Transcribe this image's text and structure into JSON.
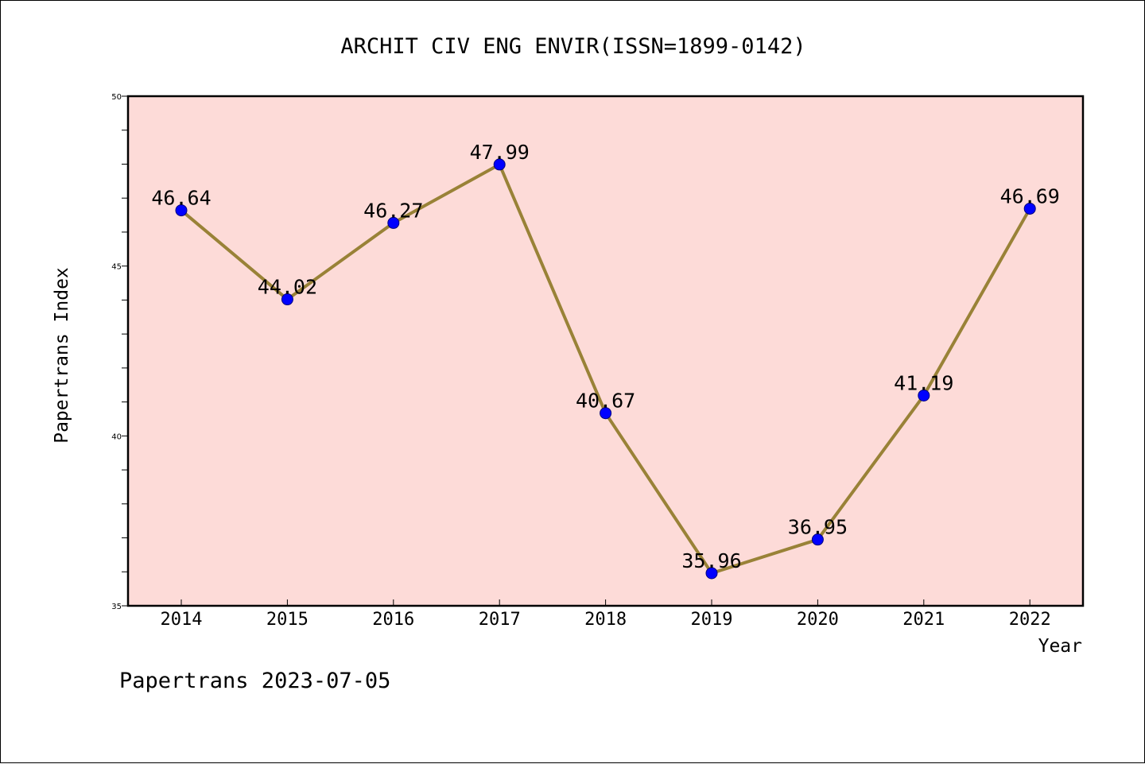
{
  "chart_data": {
    "type": "line",
    "title": "ARCHIT CIV ENG ENVIR(ISSN=1899-0142)",
    "xlabel": "Year",
    "ylabel": "Papertrans Index",
    "categories": [
      "2014",
      "2015",
      "2016",
      "2017",
      "2018",
      "2019",
      "2020",
      "2021",
      "2022"
    ],
    "series": [
      {
        "values": [
          46.64,
          44.02,
          46.27,
          47.99,
          40.67,
          35.96,
          36.95,
          41.19,
          46.69
        ],
        "labels": [
          "46.64",
          "44.02",
          "46.27",
          "47.99",
          "40.67",
          "35.96",
          "36.95",
          "41.19",
          "46.69"
        ]
      }
    ],
    "ylim": [
      35,
      50
    ],
    "yticks": [
      "35",
      "40",
      "45",
      "50"
    ],
    "grid": false,
    "legend": "none",
    "colors": {
      "plot_background": "#fddbd8",
      "line": "#998237",
      "marker": "#0000ff",
      "marker_edge": "#000080"
    }
  },
  "footer": {
    "text": "Papertrans 2023-07-05"
  }
}
